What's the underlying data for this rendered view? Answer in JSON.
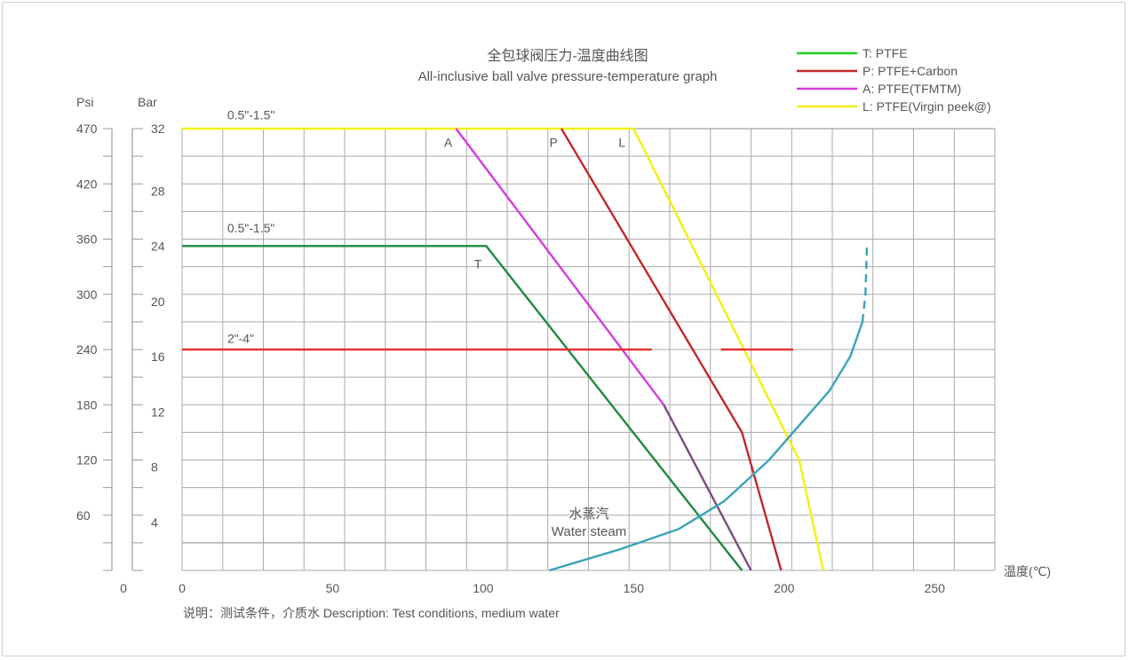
{
  "chart_data": {
    "type": "line",
    "title": "全包球阀压力-温度曲线图",
    "subtitle": "All-inclusive ball valve pressure-temperature graph",
    "xlabel": "温度(℃)",
    "y_left_label": "Psi",
    "y_right_label": "Bar",
    "xlim": [
      0,
      270
    ],
    "ylim": [
      0,
      32
    ],
    "x_ticks": [
      0,
      50,
      100,
      150,
      200,
      250
    ],
    "psi_ticks": [
      {
        "label": "470",
        "bar": 32
      },
      {
        "label": "420",
        "bar": 28
      },
      {
        "label": "360",
        "bar": 24
      },
      {
        "label": "300",
        "bar": 20
      },
      {
        "label": "240",
        "bar": 16
      },
      {
        "label": "180",
        "bar": 12
      },
      {
        "label": "120",
        "bar": 8
      },
      {
        "label": "60",
        "bar": 4
      }
    ],
    "psi_zero_label": "0",
    "bar_ticks": [
      4,
      8,
      12,
      16,
      20,
      24,
      28,
      32
    ],
    "grid": true,
    "legend_position": "top-right",
    "legend": [
      {
        "key": "T",
        "label": "T: PTFE",
        "color": "#1fd21f"
      },
      {
        "key": "P",
        "label": "P: PTFE+Carbon",
        "color": "#c0282b"
      },
      {
        "key": "A",
        "label": "A: PTFE(TFMTM)",
        "color": "#d63be0"
      },
      {
        "key": "L",
        "label": "L: PTFE(Virgin peek@)",
        "color": "#f5ef10"
      }
    ],
    "series": [
      {
        "key": "L",
        "color": "#f5ef10",
        "points": [
          [
            0,
            32
          ],
          [
            150,
            32
          ],
          [
            205,
            8
          ],
          [
            213,
            0
          ]
        ]
      },
      {
        "key": "A",
        "color": "#d63be0",
        "points": [
          [
            91,
            32
          ],
          [
            160,
            12
          ]
        ]
      },
      {
        "key": "A-tail",
        "color": "#7b4a80",
        "points": [
          [
            160,
            12
          ],
          [
            189,
            0
          ]
        ]
      },
      {
        "key": "P",
        "color": "#c0282b",
        "points": [
          [
            126,
            32
          ],
          [
            186,
            10
          ],
          [
            199,
            0
          ]
        ]
      },
      {
        "key": "T",
        "color": "#1f8a3e",
        "points": [
          [
            0,
            23.5
          ],
          [
            101,
            23.5
          ],
          [
            186,
            0
          ]
        ]
      },
      {
        "key": "2-4-left",
        "color": "#e23232",
        "points": [
          [
            0,
            16
          ],
          [
            156,
            16
          ]
        ]
      },
      {
        "key": "2-4-right",
        "color": "#e23232",
        "points": [
          [
            179,
            16
          ],
          [
            203,
            16
          ]
        ]
      },
      {
        "key": "steam",
        "color": "#3aa3b7",
        "points": [
          [
            122,
            0
          ],
          [
            145,
            1.5
          ],
          [
            165,
            3
          ],
          [
            180,
            5
          ],
          [
            195,
            8
          ],
          [
            205,
            10.5
          ],
          [
            215,
            13
          ],
          [
            222,
            15.5
          ],
          [
            226,
            18
          ]
        ]
      },
      {
        "key": "steam-dashed",
        "color": "#3aa3b7",
        "points": [
          [
            226,
            18
          ],
          [
            227,
            20
          ],
          [
            227.5,
            23.5
          ]
        ]
      }
    ],
    "series_labels": [
      {
        "text": "A",
        "x": 87,
        "y": 31
      },
      {
        "text": "P",
        "x": 122,
        "y": 31
      },
      {
        "text": "L",
        "x": 145,
        "y": 31
      },
      {
        "text": "T",
        "x": 97,
        "y": 22.2
      }
    ],
    "annotations": [
      {
        "text": "0.5\"-1.5\"",
        "x": 15,
        "y": 33
      },
      {
        "text": "0.5\"-1.5\"",
        "x": 15,
        "y": 24.8
      },
      {
        "text": "2\"-4\"",
        "x": 15,
        "y": 16.8
      }
    ],
    "steam_label_cn": "水蒸汽",
    "steam_label_en": "Water steam",
    "footnote": "说明：测试条件，介质水   Description: Test conditions, medium water"
  }
}
